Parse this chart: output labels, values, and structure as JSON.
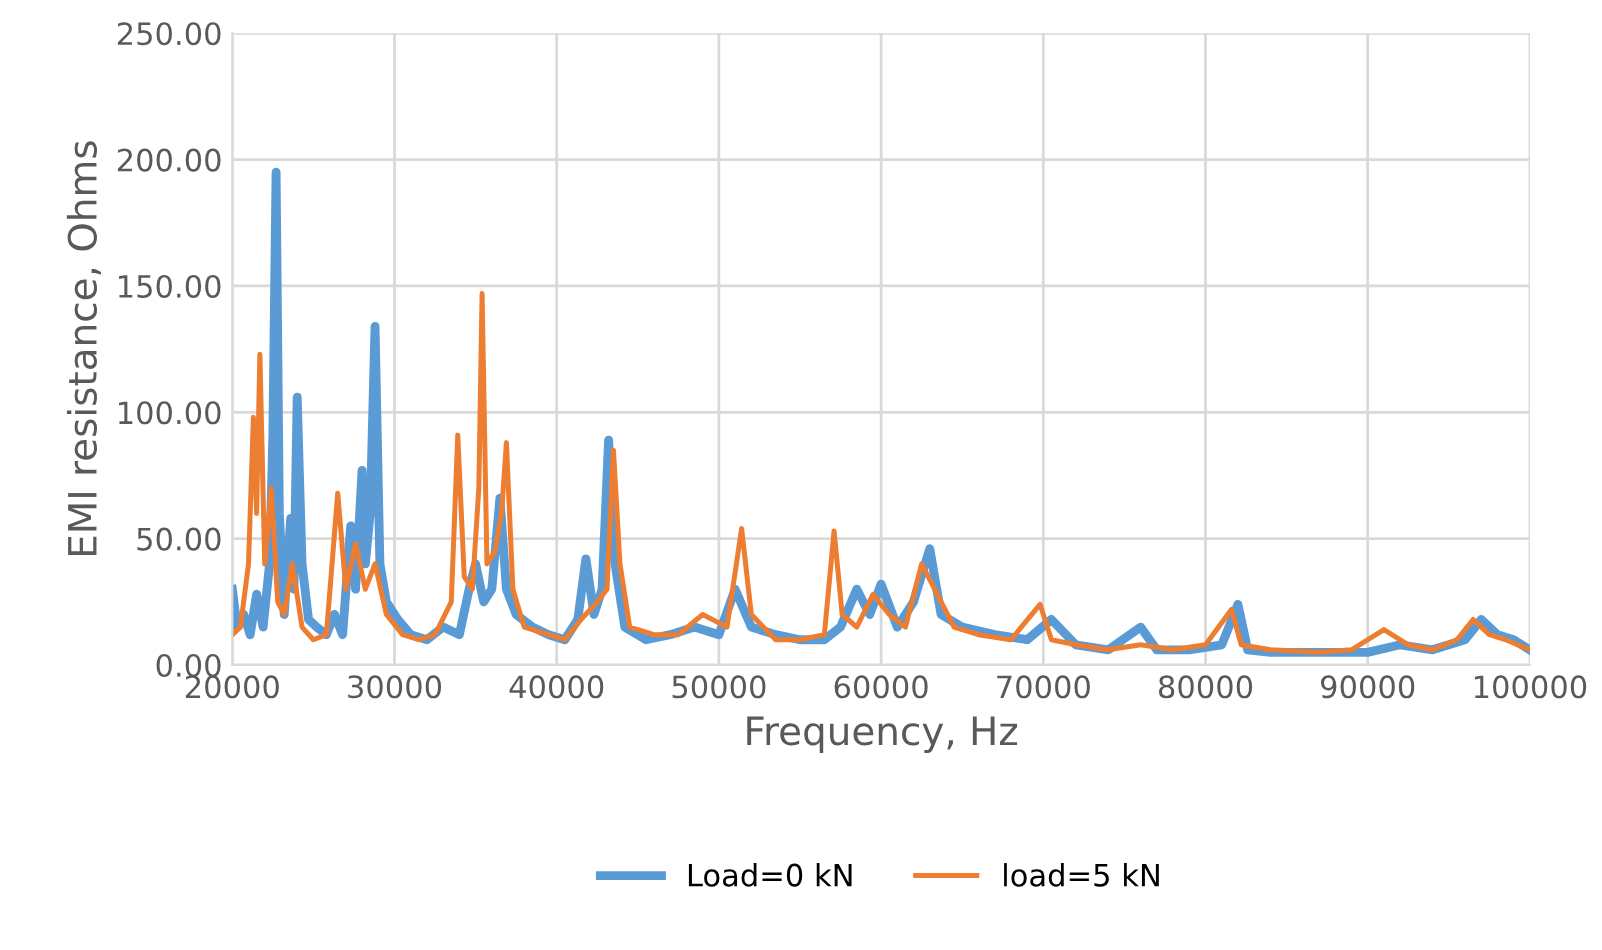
{
  "chart_data": {
    "type": "line",
    "xlabel": "Frequency, Hz",
    "ylabel": "EMI resistance, Ohms",
    "xlim": [
      20000,
      100000
    ],
    "ylim": [
      0,
      250
    ],
    "xticks": [
      {
        "value": 20000,
        "label": "20000"
      },
      {
        "value": 30000,
        "label": "30000"
      },
      {
        "value": 40000,
        "label": "40000"
      },
      {
        "value": 50000,
        "label": "50000"
      },
      {
        "value": 60000,
        "label": "60000"
      },
      {
        "value": 70000,
        "label": "70000"
      },
      {
        "value": 80000,
        "label": "80000"
      },
      {
        "value": 90000,
        "label": "90000"
      },
      {
        "value": 100000,
        "label": "100000"
      }
    ],
    "yticks": [
      {
        "value": 0,
        "label": "0.00"
      },
      {
        "value": 50,
        "label": "50.00"
      },
      {
        "value": 100,
        "label": "100.00"
      },
      {
        "value": 150,
        "label": "150.00"
      },
      {
        "value": 200,
        "label": "200.00"
      },
      {
        "value": 250,
        "label": "250.00"
      }
    ],
    "grid": true,
    "legend": "bottom",
    "marker": "none",
    "line_style": "solid",
    "series": [
      {
        "name": "Load=0 kN",
        "color": "#5b9bd5",
        "x": [
          20000,
          20300,
          20700,
          21100,
          21500,
          21900,
          22300,
          22500,
          22700,
          22900,
          23200,
          23600,
          23800,
          24000,
          24300,
          24700,
          25200,
          25800,
          26300,
          26800,
          27300,
          27600,
          28000,
          28200,
          28500,
          28800,
          29100,
          29500,
          30200,
          31000,
          32000,
          33000,
          34000,
          34600,
          35000,
          35500,
          36000,
          36500,
          36900,
          37500,
          38500,
          39500,
          40500,
          41300,
          41800,
          42300,
          42800,
          43200,
          43600,
          44200,
          45500,
          47000,
          48500,
          50000,
          51000,
          52000,
          53500,
          55000,
          56500,
          57500,
          58500,
          59300,
          60000,
          61000,
          62000,
          63000,
          63700,
          65000,
          67000,
          69000,
          70500,
          72000,
          74000,
          76000,
          77000,
          79000,
          81000,
          82000,
          82600,
          84000,
          87000,
          90000,
          92000,
          94000,
          96000,
          97000,
          98000,
          99000,
          100000
        ],
        "values": [
          30,
          15,
          20,
          12,
          28,
          15,
          40,
          90,
          195,
          60,
          20,
          58,
          30,
          106,
          40,
          18,
          15,
          12,
          20,
          12,
          55,
          30,
          77,
          40,
          60,
          134,
          40,
          25,
          18,
          12,
          10,
          15,
          12,
          30,
          40,
          25,
          30,
          66,
          30,
          20,
          15,
          12,
          10,
          18,
          42,
          20,
          30,
          89,
          40,
          15,
          10,
          12,
          15,
          12,
          30,
          15,
          12,
          10,
          10,
          15,
          30,
          20,
          32,
          15,
          25,
          46,
          20,
          15,
          12,
          10,
          18,
          8,
          6,
          15,
          6,
          6,
          8,
          24,
          6,
          5,
          5,
          5,
          8,
          6,
          10,
          18,
          12,
          10,
          6
        ]
      },
      {
        "name": "load=5 kN",
        "color": "#ed7d31",
        "x": [
          20000,
          20500,
          21000,
          21300,
          21500,
          21700,
          22000,
          22400,
          22800,
          23200,
          23700,
          24300,
          25000,
          25800,
          26500,
          27000,
          27600,
          28200,
          28800,
          29500,
          30500,
          31500,
          32500,
          33500,
          33900,
          34300,
          34800,
          35200,
          35400,
          35700,
          36200,
          36600,
          36900,
          37300,
          38000,
          39500,
          40500,
          41500,
          42500,
          43100,
          43500,
          43900,
          44500,
          46000,
          47500,
          49000,
          50500,
          51400,
          52000,
          53500,
          55000,
          56500,
          57100,
          57600,
          58500,
          59500,
          60500,
          61500,
          62500,
          63300,
          64500,
          66000,
          68000,
          69800,
          70500,
          72000,
          74000,
          76000,
          78000,
          80000,
          81600,
          82200,
          84000,
          87000,
          89000,
          91000,
          92500,
          94000,
          95500,
          96500,
          97500,
          98500,
          100000
        ],
        "values": [
          12,
          15,
          40,
          98,
          60,
          123,
          40,
          70,
          25,
          20,
          40,
          15,
          10,
          12,
          68,
          30,
          48,
          30,
          40,
          20,
          12,
          10,
          12,
          25,
          91,
          35,
          30,
          70,
          147,
          40,
          45,
          60,
          88,
          30,
          15,
          12,
          10,
          18,
          25,
          30,
          85,
          40,
          15,
          12,
          12,
          20,
          15,
          54,
          20,
          10,
          10,
          12,
          53,
          20,
          15,
          28,
          20,
          15,
          40,
          30,
          15,
          12,
          10,
          24,
          10,
          8,
          6,
          8,
          6,
          8,
          22,
          8,
          6,
          5,
          6,
          14,
          8,
          6,
          10,
          18,
          12,
          10,
          6
        ]
      }
    ]
  }
}
